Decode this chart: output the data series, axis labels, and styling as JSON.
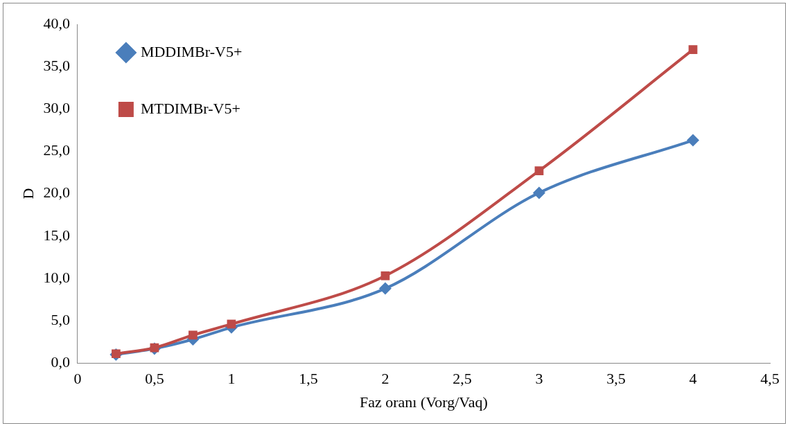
{
  "chart_data": {
    "type": "line",
    "xlabel": "Faz oranı (Vorg/Vaq)",
    "ylabel": "D",
    "xlim": [
      0,
      4.5
    ],
    "xticks": [
      0,
      {
        "value": 0.5,
        "label": "0,5"
      },
      1,
      {
        "value": 1.5,
        "label": "1,5"
      },
      2,
      {
        "value": 2.5,
        "label": "2,5"
      },
      3,
      {
        "value": 3.5,
        "label": "3,5"
      },
      4,
      {
        "value": 4.5,
        "label": "4,5"
      }
    ],
    "ylim": [
      0,
      40
    ],
    "yticks": [
      {
        "value": 0,
        "label": "0,0"
      },
      {
        "value": 5,
        "label": "5,0"
      },
      {
        "value": 10,
        "label": "10,0"
      },
      {
        "value": 15,
        "label": "15,0"
      },
      {
        "value": 20,
        "label": "20,0"
      },
      {
        "value": 25,
        "label": "25,0"
      },
      {
        "value": 30,
        "label": "30,0"
      },
      {
        "value": 35,
        "label": "35,0"
      },
      {
        "value": 40,
        "label": "40,0"
      }
    ],
    "x": [
      0.25,
      0.5,
      0.75,
      1,
      2,
      3,
      4
    ],
    "series": [
      {
        "name": "MDDIMBr-V5+",
        "color": "#4a7ebb",
        "marker": "diamond",
        "values": [
          1.0,
          1.7,
          2.8,
          4.2,
          8.8,
          20.1,
          26.3
        ]
      },
      {
        "name": "MTDIMBr-V5+",
        "color": "#be4b48",
        "marker": "square",
        "values": [
          1.1,
          1.8,
          3.3,
          4.6,
          10.3,
          22.7,
          37.0
        ]
      }
    ],
    "grid": false,
    "legend": "top left",
    "line_style": "solid"
  }
}
